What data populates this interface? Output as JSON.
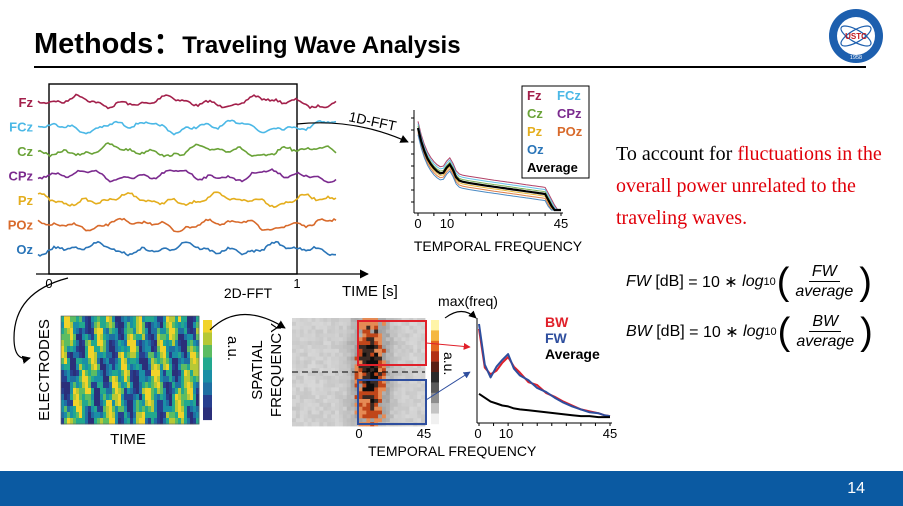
{
  "title": {
    "main": "Methods：",
    "sub": "Traveling Wave Analysis"
  },
  "logo": {
    "text": "USTC",
    "year": "1958"
  },
  "page_number": "14",
  "notes": {
    "lead": "To account for ",
    "highlight": "fluctuations in the overall power unrelated to the traveling waves."
  },
  "equations": {
    "fw": {
      "lhs": "FW",
      "unit": "[dB]",
      "eq": "= 10 ∗",
      "log": "log",
      "base": "10",
      "num": "FW",
      "den": "average"
    },
    "bw": {
      "lhs": "BW",
      "unit": "[dB]",
      "eq": "= 10 ∗",
      "log": "log",
      "base": "10",
      "num": "BW",
      "den": "average"
    }
  },
  "colors": {
    "Fz": "#a3204b",
    "FCz": "#4bb8e6",
    "Cz": "#6aa338",
    "CPz": "#7b2a8e",
    "Pz": "#e4ae1e",
    "POz": "#d86a2b",
    "Oz": "#2a75b8",
    "BW": "#e0202a",
    "FW": "#2e4e9e",
    "Average": "#000000",
    "footer": "#0b5aa2"
  },
  "eeg_panel": {
    "channels": [
      "Fz",
      "FCz",
      "Cz",
      "CPz",
      "Pz",
      "POz",
      "Oz"
    ],
    "x_ticks": [
      "0",
      "1"
    ],
    "x_label": "TIME [s]"
  },
  "arrow_labels": {
    "fft1d": "1D-FFT",
    "fft2d": "2D-FFT",
    "maxfreq": "max(freq)"
  },
  "spectrum_1d": {
    "legend": [
      "Fz",
      "FCz",
      "Cz",
      "CPz",
      "Pz",
      "POz",
      "Oz",
      "Average"
    ],
    "x_ticks": [
      "0",
      "10",
      "45"
    ],
    "x_label": "TEMPORAL FREQUENCY"
  },
  "electrode_panel": {
    "y_label": "ELECTRODES",
    "x_label": "TIME",
    "cbar_label": "a.u."
  },
  "spectrum_2d": {
    "y_label_1": "SPATIAL",
    "y_label_2": "FREQUENCY",
    "x_ticks": [
      "0",
      "45"
    ],
    "x_label": "TEMPORAL FREQUENCY",
    "cbar_label": "a.u."
  },
  "chart_data": {
    "type": "line",
    "x": [
      0,
      2,
      4,
      6,
      8,
      10,
      12,
      14,
      17,
      20,
      23,
      26,
      29,
      32,
      35,
      38,
      41,
      43,
      45
    ],
    "xlim": [
      0,
      45
    ],
    "x_ticks": [
      "0",
      "10",
      "45"
    ],
    "xlabel": "TEMPORAL FREQUENCY",
    "ylabel": "a.u.",
    "legend": [
      "BW",
      "FW",
      "Average"
    ],
    "legend_position": "top-right",
    "series": [
      {
        "name": "BW",
        "values": [
          0.95,
          0.55,
          0.48,
          0.52,
          0.6,
          0.66,
          0.56,
          0.5,
          0.4,
          0.37,
          0.29,
          0.25,
          0.2,
          0.16,
          0.12,
          0.1,
          0.08,
          0.06,
          0.05
        ]
      },
      {
        "name": "FW",
        "values": [
          1.0,
          0.58,
          0.45,
          0.56,
          0.63,
          0.69,
          0.54,
          0.47,
          0.42,
          0.34,
          0.3,
          0.24,
          0.19,
          0.15,
          0.12,
          0.09,
          0.08,
          0.06,
          0.05
        ]
      },
      {
        "name": "Average",
        "values": [
          0.28,
          0.24,
          0.2,
          0.18,
          0.16,
          0.15,
          0.13,
          0.12,
          0.11,
          0.1,
          0.09,
          0.08,
          0.07,
          0.06,
          0.05,
          0.05,
          0.04,
          0.04,
          0.04
        ]
      }
    ]
  }
}
